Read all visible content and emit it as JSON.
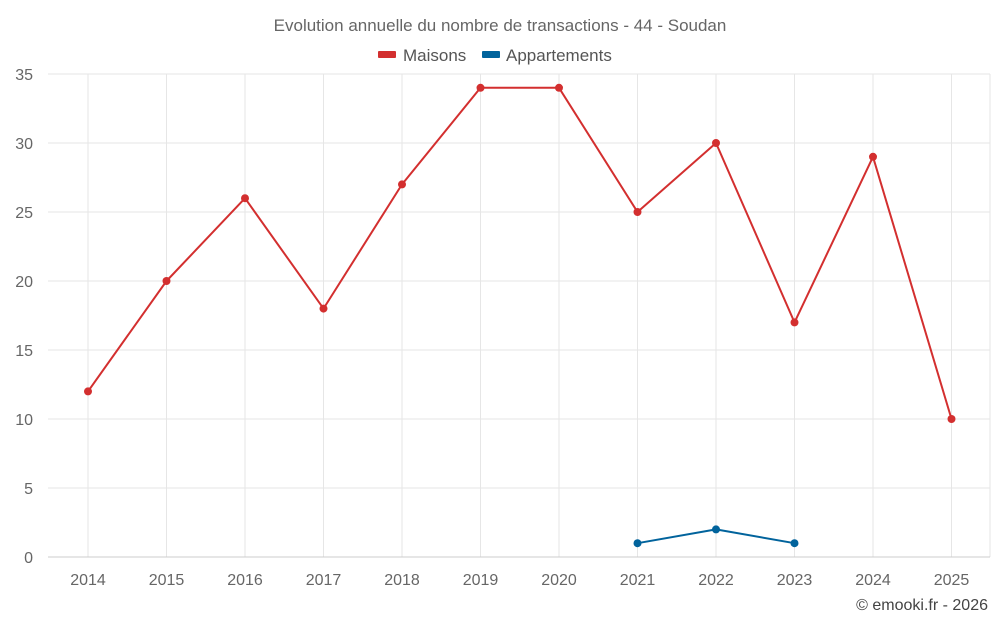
{
  "chart_data": {
    "type": "line",
    "title": "Evolution annuelle du nombre de transactions - 44 - Soudan",
    "categories": [
      "2014",
      "2015",
      "2016",
      "2017",
      "2018",
      "2019",
      "2020",
      "2021",
      "2022",
      "2023",
      "2024",
      "2025"
    ],
    "ylim": [
      0,
      35
    ],
    "yticks": [
      0,
      5,
      10,
      15,
      20,
      25,
      30,
      35
    ],
    "grid": true,
    "legend_position": "top-center",
    "series": [
      {
        "name": "Maisons",
        "color": "#d32f2f",
        "values": [
          12,
          20,
          26,
          18,
          27,
          34,
          34,
          25,
          30,
          17,
          29,
          10
        ]
      },
      {
        "name": "Appartements",
        "color": "#01639c",
        "values": [
          null,
          null,
          null,
          null,
          null,
          null,
          null,
          1,
          2,
          1,
          null,
          null
        ]
      }
    ],
    "xlabel": "",
    "ylabel": ""
  },
  "credit": "© emooki.fr - 2026"
}
